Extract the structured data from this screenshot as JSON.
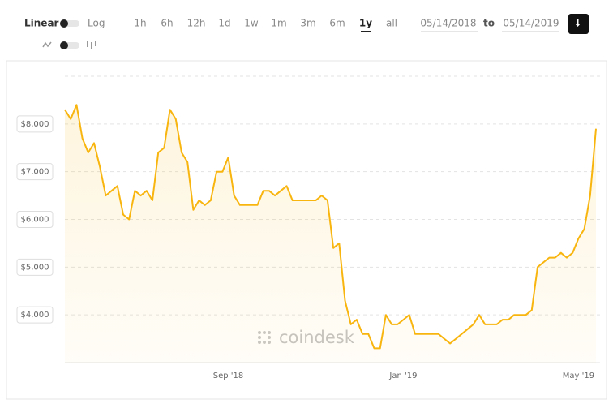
{
  "controls": {
    "scale_options": [
      "Linear",
      "Log"
    ],
    "ranges": [
      {
        "label": "1h",
        "active": false
      },
      {
        "label": "6h",
        "active": false
      },
      {
        "label": "12h",
        "active": false
      },
      {
        "label": "1d",
        "active": false
      },
      {
        "label": "1w",
        "active": false
      },
      {
        "label": "1m",
        "active": false
      },
      {
        "label": "3m",
        "active": false
      },
      {
        "label": "6m",
        "active": false
      },
      {
        "label": "1y",
        "active": true
      },
      {
        "label": "all",
        "active": false
      }
    ],
    "date_from": "05/14/2018",
    "date_separator": "to",
    "date_to": "05/14/2019"
  },
  "watermark": "coindesk",
  "chart_data": {
    "type": "area",
    "color": "#f8b50f",
    "grid": true,
    "categories": [
      null,
      null,
      null,
      null,
      null,
      null,
      null,
      null,
      null,
      null,
      null,
      null,
      null,
      null,
      null,
      null,
      null,
      null,
      null,
      null,
      null,
      null,
      null,
      null,
      null,
      null,
      null,
      null,
      "Sep '18",
      null,
      null,
      null,
      null,
      null,
      null,
      null,
      null,
      null,
      null,
      null,
      null,
      null,
      null,
      null,
      null,
      null,
      null,
      null,
      null,
      null,
      null,
      null,
      null,
      null,
      null,
      null,
      null,
      null,
      "Jan '19",
      null,
      null,
      null,
      null,
      null,
      null,
      null,
      null,
      null,
      null,
      null,
      null,
      null,
      null,
      null,
      null,
      null,
      null,
      null,
      null,
      null,
      null,
      null,
      null,
      null,
      null,
      null,
      null,
      null,
      "May '19",
      null,
      null,
      null
    ],
    "values": [
      8300,
      8100,
      8400,
      7700,
      7400,
      7600,
      7100,
      6500,
      6600,
      6700,
      6100,
      6000,
      6600,
      6500,
      6600,
      6400,
      7400,
      7500,
      8300,
      8100,
      7400,
      7200,
      6200,
      6400,
      6300,
      6400,
      7000,
      7000,
      7300,
      6500,
      6300,
      6300,
      6300,
      6300,
      6600,
      6600,
      6500,
      6600,
      6700,
      6400,
      6400,
      6400,
      6400,
      6400,
      6500,
      6400,
      5400,
      5500,
      4300,
      3800,
      3900,
      3600,
      3600,
      3300,
      3300,
      4000,
      3800,
      3800,
      3900,
      4000,
      3600,
      3600,
      3600,
      3600,
      3600,
      3500,
      3400,
      3500,
      3600,
      3700,
      3800,
      4000,
      3800,
      3800,
      3800,
      3900,
      3900,
      4000,
      4000,
      4000,
      4100,
      5000,
      5100,
      5200,
      5200,
      5300,
      5200,
      5300,
      5600,
      5800,
      6500,
      7900
    ],
    "ylim": [
      3000,
      9000
    ],
    "yticks": [
      {
        "value": 4000,
        "label": "$4,000"
      },
      {
        "value": 5000,
        "label": "$5,000"
      },
      {
        "value": 6000,
        "label": "$6,000"
      },
      {
        "value": 7000,
        "label": "$7,000"
      },
      {
        "value": 8000,
        "label": "$8,000"
      }
    ]
  }
}
